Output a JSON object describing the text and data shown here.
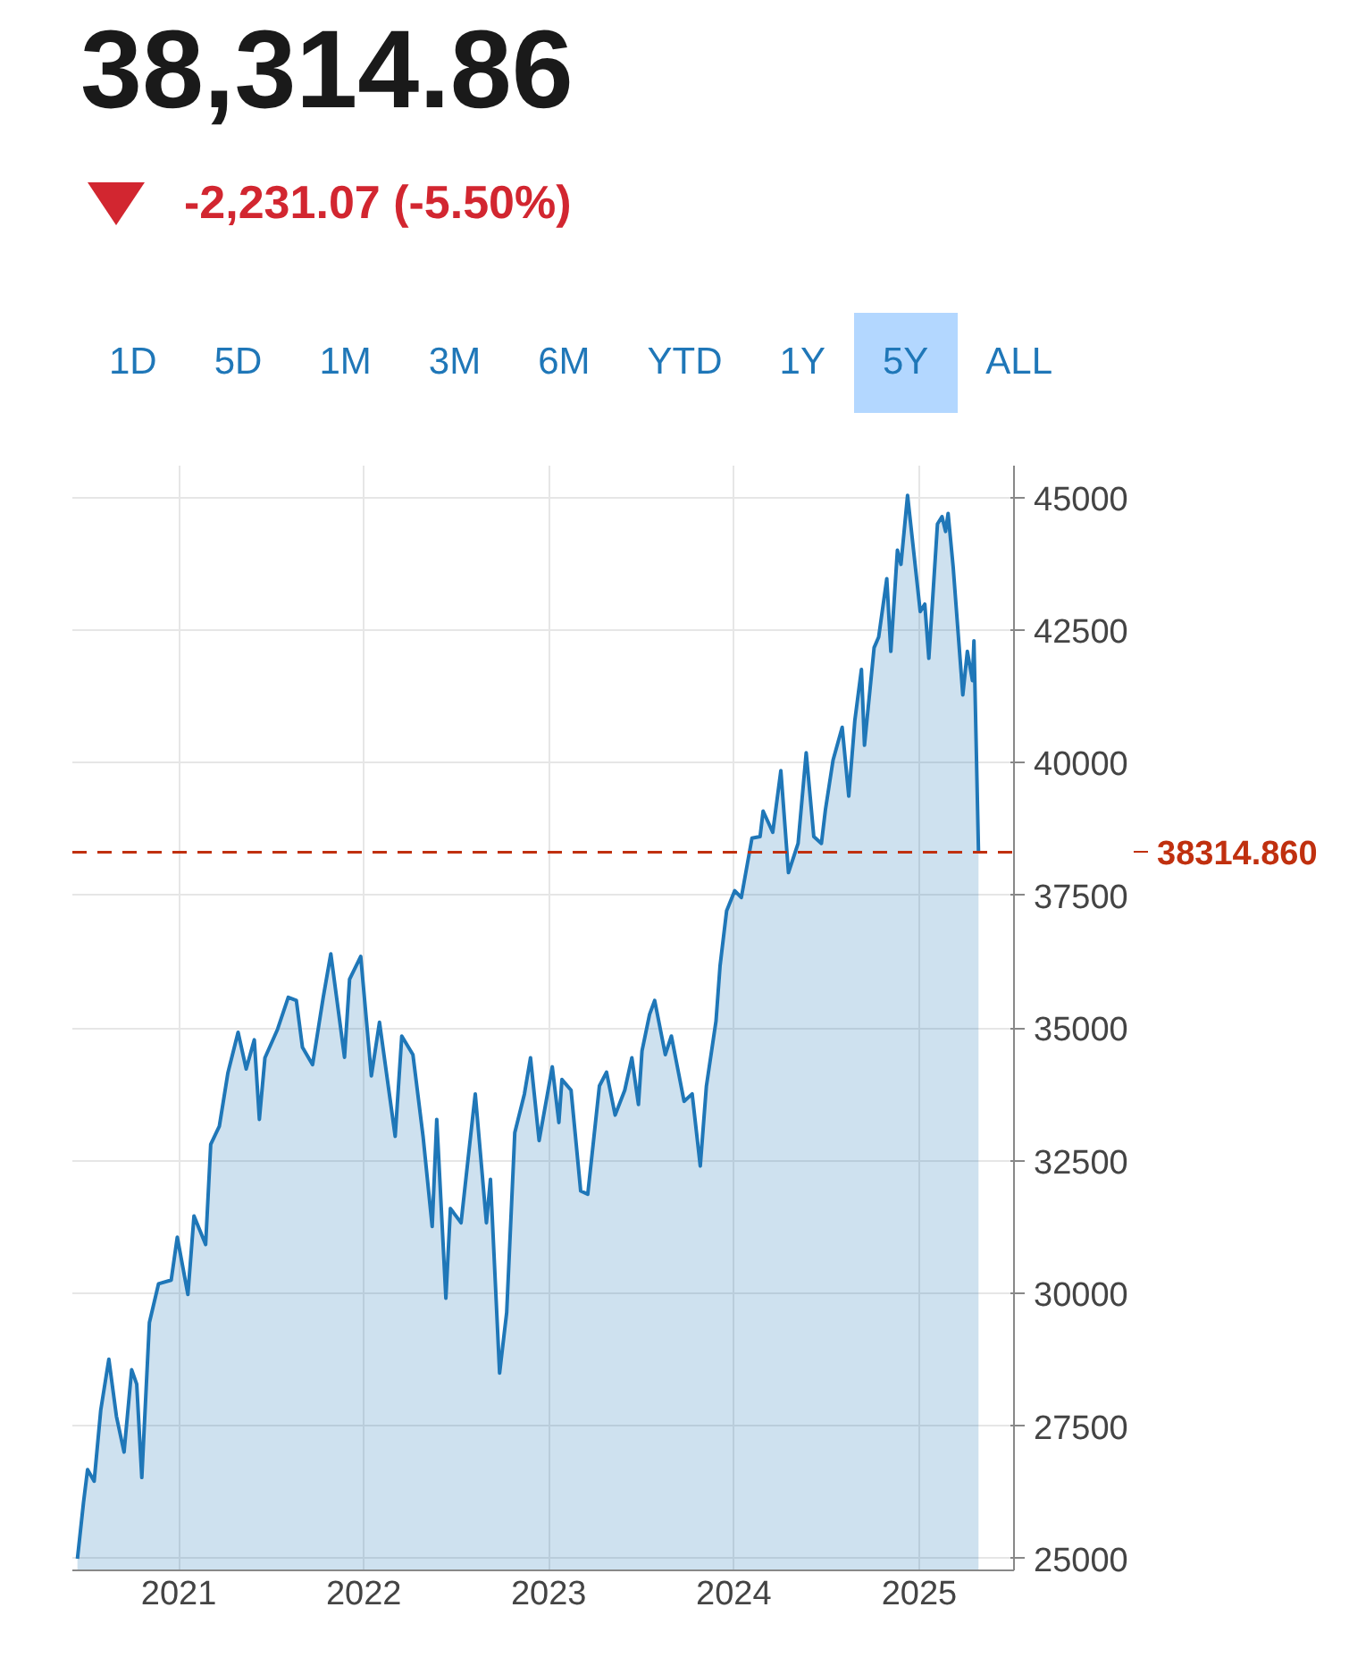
{
  "chart_data": {
    "type": "area",
    "title": "38,314.86",
    "subtitle": "-2,231.07 (-5.50%)",
    "annotations": [
      "1D",
      "5D",
      "1M",
      "3M",
      "6M",
      "YTD",
      "1Y",
      "5Y",
      "ALL"
    ],
    "x": [
      "2020-06-15",
      "2020-06-27",
      "2020-07-05",
      "2020-07-18",
      "2020-07-31",
      "2020-08-16",
      "2020-08-31",
      "2020-09-15",
      "2020-09-30",
      "2020-10-10",
      "2020-10-20",
      "2020-11-04",
      "2020-11-22",
      "2020-12-17",
      "2020-12-29",
      "2021-01-19",
      "2021-01-31",
      "2021-02-23",
      "2021-03-05",
      "2021-03-22",
      "2021-04-08",
      "2021-04-28",
      "2021-05-14",
      "2021-05-30",
      "2021-06-09",
      "2021-06-20",
      "2021-07-15",
      "2021-08-05",
      "2021-08-21",
      "2021-09-02",
      "2021-09-22",
      "2021-10-13",
      "2021-10-28",
      "2021-11-24",
      "2021-12-04",
      "2021-12-26",
      "2022-01-16",
      "2022-02-01",
      "2022-03-04",
      "2022-03-17",
      "2022-04-08",
      "2022-04-28",
      "2022-05-16",
      "2022-05-25",
      "2022-06-12",
      "2022-06-21",
      "2022-07-12",
      "2022-07-29",
      "2022-08-09",
      "2022-08-31",
      "2022-09-08",
      "2022-09-26",
      "2022-10-10",
      "2022-10-26",
      "2022-11-14",
      "2022-11-26",
      "2022-12-13",
      "2023-01-08",
      "2023-01-21",
      "2023-01-27",
      "2023-02-14",
      "2023-03-05",
      "2023-03-19",
      "2023-04-11",
      "2023-04-25",
      "2023-05-12",
      "2023-05-31",
      "2023-06-14",
      "2023-06-27",
      "2023-07-04",
      "2023-07-19",
      "2023-07-29",
      "2023-08-19",
      "2023-08-31",
      "2023-09-25",
      "2023-10-11",
      "2023-10-27",
      "2023-11-08",
      "2023-11-27",
      "2023-12-05",
      "2023-12-18",
      "2024-01-03",
      "2024-01-16",
      "2024-02-06",
      "2024-02-22",
      "2024-02-28",
      "2024-03-18",
      "2024-04-03",
      "2024-04-18",
      "2024-05-07",
      "2024-05-23",
      "2024-06-07",
      "2024-06-22",
      "2024-06-30",
      "2024-07-15",
      "2024-08-02",
      "2024-08-15",
      "2024-08-27",
      "2024-09-09",
      "2024-09-15",
      "2024-10-04",
      "2024-10-13",
      "2024-10-29",
      "2024-11-06",
      "2024-11-19",
      "2024-11-26",
      "2024-12-09",
      "2025-01-03",
      "2025-01-12",
      "2025-01-20",
      "2025-02-06",
      "2025-02-15",
      "2025-02-22",
      "2025-02-27",
      "2025-03-09",
      "2025-03-28",
      "2025-04-06",
      "2025-04-16",
      "2025-04-19",
      "2025-04-28"
    ],
    "series": [
      {
        "color": "#1f77b8",
        "values": [
          25000,
          26060,
          26680,
          26460,
          27800,
          28760,
          27680,
          27010,
          28560,
          28290,
          26530,
          29450,
          30180,
          30250,
          31060,
          29980,
          31460,
          30920,
          32810,
          33150,
          34160,
          34920,
          34230,
          34780,
          33280,
          34440,
          34980,
          35580,
          35520,
          34640,
          34310,
          35580,
          36400,
          34450,
          35920,
          36350,
          34100,
          35110,
          32960,
          34850,
          34500,
          32960,
          31260,
          33280,
          29910,
          31600,
          31330,
          32810,
          33760,
          31330,
          32150,
          28500,
          29640,
          33030,
          33760,
          34440,
          32880,
          34270,
          33220,
          34030,
          33830,
          31930,
          31870,
          33910,
          34170,
          33360,
          33830,
          34440,
          33560,
          34570,
          35260,
          35520,
          34500,
          34850,
          33620,
          33760,
          32400,
          33900,
          35130,
          36170,
          37210,
          37590,
          37460,
          38580,
          38610,
          39090,
          38690,
          39850,
          37930,
          38480,
          40190,
          38610,
          38480,
          39120,
          40050,
          40670,
          39370,
          40800,
          41760,
          40330,
          42170,
          42370,
          43470,
          42100,
          44010,
          43740,
          45040,
          42850,
          42990,
          41970,
          44500,
          44640,
          44360,
          44700,
          43690,
          41280,
          42100,
          41550,
          42300,
          38314.86
        ]
      }
    ],
    "xlim": [
      "2020-06-05",
      "2025-07-07"
    ],
    "xticks": [
      {
        "value": "2021-01-01",
        "label": "2021"
      },
      {
        "value": "2022-01-01",
        "label": "2022"
      },
      {
        "value": "2023-01-01",
        "label": "2023"
      },
      {
        "value": "2024-01-01",
        "label": "2024"
      },
      {
        "value": "2025-01-01",
        "label": "2025"
      }
    ],
    "ylim": [
      24780,
      45600
    ],
    "yticks": [
      25000,
      27500,
      30000,
      32500,
      35000,
      37500,
      40000,
      42500,
      45000
    ],
    "ref_lines": [
      {
        "axis": "y",
        "value": 38314.86,
        "label": "38314.860",
        "color": "#c0300f",
        "line_style": "dashed"
      }
    ],
    "grid": true
  }
}
